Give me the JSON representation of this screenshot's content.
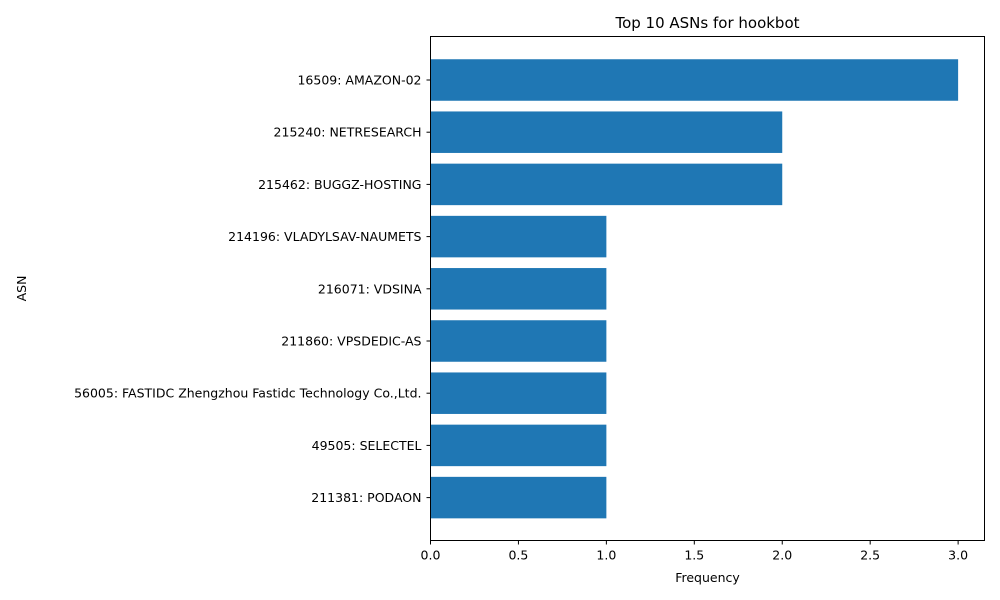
{
  "chart_data": {
    "type": "bar",
    "orientation": "horizontal",
    "title": "Top 10 ASNs for hookbot",
    "xlabel": "Frequency",
    "ylabel": "ASN",
    "categories": [
      "16509: AMAZON-02",
      "215240: NETRESEARCH",
      "215462: BUGGZ-HOSTING",
      "214196: VLADYLSAV-NAUMETS",
      "216071: VDSINA",
      "211860: VPSDEDIC-AS",
      "56005: FASTIDC Zhengzhou Fastidc Technology Co.,Ltd.",
      "49505: SELECTEL",
      "211381: PODAON"
    ],
    "values": [
      3,
      2,
      2,
      1,
      1,
      1,
      1,
      1,
      1
    ],
    "xlim": [
      0,
      3.15
    ],
    "xticks": [
      "0.0",
      "0.5",
      "1.0",
      "1.5",
      "2.0",
      "2.5",
      "3.0"
    ],
    "bar_color": "#1f77b4",
    "grid": false,
    "legend": "none"
  }
}
